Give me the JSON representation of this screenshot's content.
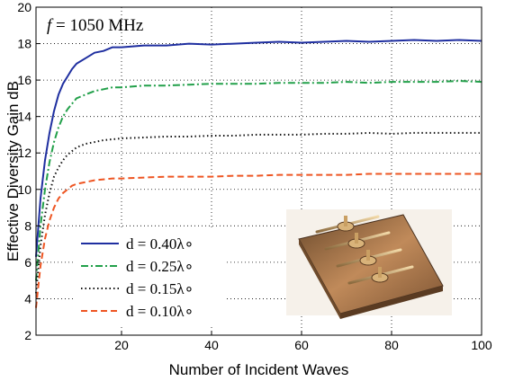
{
  "chart_data": {
    "type": "line",
    "title": "",
    "annotation": {
      "f_label": "f = 1050 MHz"
    },
    "xlabel": "Number of Incident Waves",
    "ylabel": "Effective Diversity Gain dB",
    "xlim": [
      1,
      100
    ],
    "ylim": [
      2,
      20
    ],
    "xticks": [
      "20",
      "40",
      "60",
      "80",
      "100"
    ],
    "yticks": [
      "2",
      "4",
      "6",
      "8",
      "10",
      "12",
      "14",
      "16",
      "18",
      "20"
    ],
    "grid": true,
    "legend_position": "bottom-left",
    "inset_image": "antenna-array-photo",
    "x": [
      1,
      2,
      3,
      4,
      5,
      6,
      7,
      8,
      9,
      10,
      12,
      14,
      16,
      18,
      20,
      25,
      30,
      35,
      40,
      45,
      50,
      55,
      60,
      65,
      70,
      75,
      80,
      85,
      90,
      95,
      100
    ],
    "series": [
      {
        "name": "d = 0.40λ∘",
        "color": "#1f2fa0",
        "dash": "solid",
        "values": [
          6.3,
          9.5,
          11.6,
          13.1,
          14.3,
          15.2,
          15.8,
          16.2,
          16.6,
          16.9,
          17.2,
          17.5,
          17.6,
          17.8,
          17.8,
          17.9,
          17.9,
          18.0,
          17.95,
          18.0,
          18.05,
          18.1,
          18.05,
          18.1,
          18.15,
          18.1,
          18.15,
          18.2,
          18.15,
          18.2,
          18.15
        ]
      },
      {
        "name": "d = 0.25λ∘",
        "color": "#22a04a",
        "dash": "dashdot",
        "values": [
          5.0,
          8.0,
          10.0,
          11.5,
          12.6,
          13.4,
          14.0,
          14.4,
          14.7,
          15.0,
          15.2,
          15.4,
          15.5,
          15.6,
          15.6,
          15.7,
          15.7,
          15.75,
          15.8,
          15.8,
          15.8,
          15.85,
          15.85,
          15.85,
          15.9,
          15.85,
          15.9,
          15.9,
          15.9,
          15.95,
          15.9
        ]
      },
      {
        "name": "d = 0.15λ∘",
        "color": "#111111",
        "dash": "dotted",
        "values": [
          4.3,
          6.9,
          8.6,
          9.8,
          10.7,
          11.2,
          11.6,
          11.9,
          12.1,
          12.3,
          12.5,
          12.6,
          12.7,
          12.75,
          12.8,
          12.85,
          12.9,
          12.9,
          12.95,
          12.95,
          13.0,
          13.0,
          13.0,
          13.05,
          13.05,
          13.1,
          13.05,
          13.1,
          13.1,
          13.1,
          13.1
        ]
      },
      {
        "name": "d = 0.10λ∘",
        "color": "#ee5522",
        "dash": "dashed",
        "values": [
          3.5,
          5.8,
          7.3,
          8.3,
          9.0,
          9.5,
          9.8,
          10.0,
          10.2,
          10.3,
          10.4,
          10.5,
          10.55,
          10.6,
          10.6,
          10.65,
          10.7,
          10.7,
          10.7,
          10.75,
          10.75,
          10.8,
          10.8,
          10.8,
          10.8,
          10.85,
          10.85,
          10.85,
          10.85,
          10.85,
          10.85
        ]
      }
    ]
  }
}
